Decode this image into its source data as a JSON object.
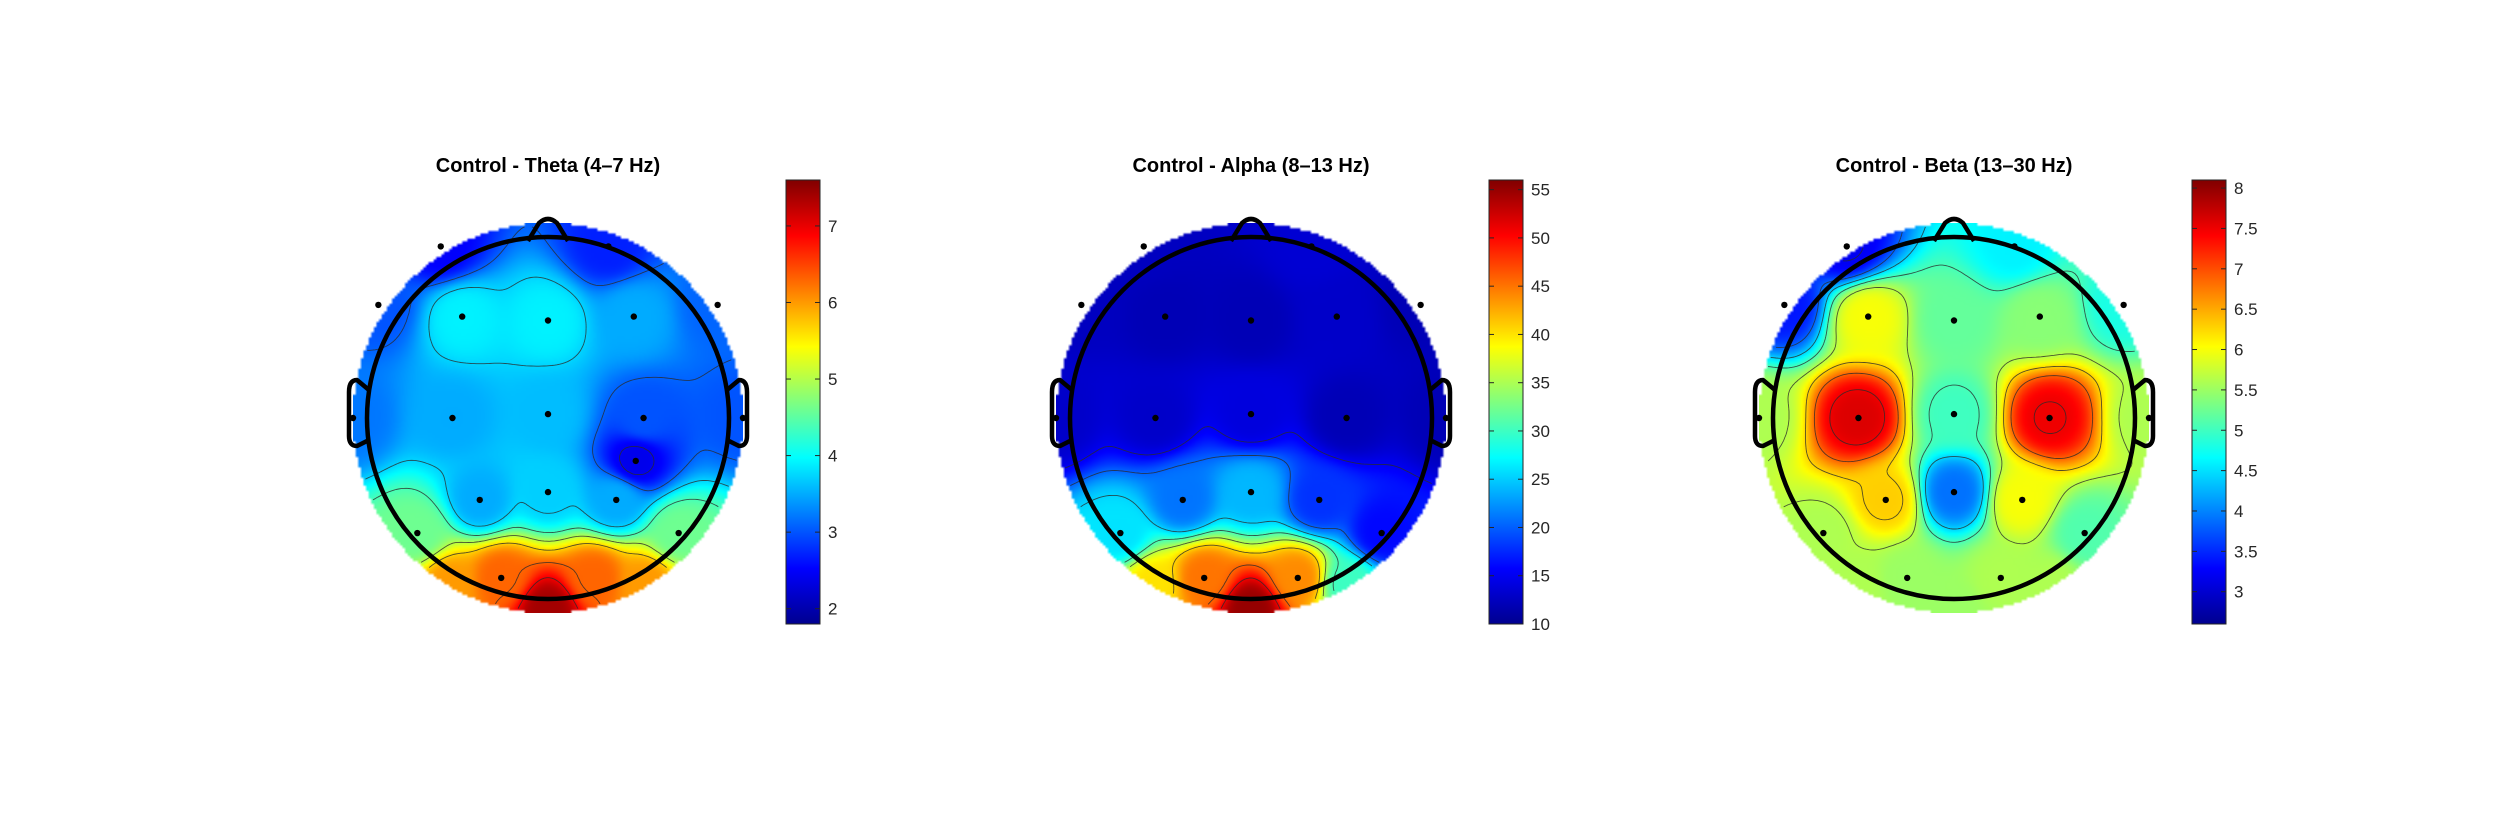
{
  "figure": {
    "colormap": "jet",
    "colormap_stops": [
      "#00008f",
      "#0000ff",
      "#00ffff",
      "#ffff00",
      "#ff0000",
      "#800000"
    ]
  },
  "chart_data": [
    {
      "type": "heatmap",
      "subtype": "eeg-topoplot",
      "title": "Control - Theta (4–7 Hz)",
      "clim": [
        1.8,
        7.6
      ],
      "colorbar_ticks": [
        "2",
        "3",
        "4",
        "5",
        "6",
        "7"
      ],
      "colorbar_tick_values": [
        2,
        3,
        4,
        5,
        6,
        7
      ],
      "background_level": 3.3,
      "electrodes": [
        {
          "x": -0.55,
          "y": 0.88,
          "v": 2.5
        },
        {
          "x": 0.31,
          "y": 0.88,
          "v": 2.7
        },
        {
          "x": -0.87,
          "y": 0.58,
          "v": 3.0
        },
        {
          "x": -0.44,
          "y": 0.52,
          "v": 3.9
        },
        {
          "x": 0.0,
          "y": 0.5,
          "v": 3.9
        },
        {
          "x": 0.44,
          "y": 0.52,
          "v": 3.5
        },
        {
          "x": 0.87,
          "y": 0.58,
          "v": 3.1
        },
        {
          "x": -1.0,
          "y": 0.0,
          "v": 3.2
        },
        {
          "x": -0.49,
          "y": 0.0,
          "v": 3.5
        },
        {
          "x": 0.0,
          "y": 0.02,
          "v": 3.6
        },
        {
          "x": 0.49,
          "y": 0.0,
          "v": 3.0
        },
        {
          "x": 1.0,
          "y": 0.0,
          "v": 3.0
        },
        {
          "x": 0.45,
          "y": -0.22,
          "v": 2.4
        },
        {
          "x": -0.35,
          "y": -0.42,
          "v": 3.5
        },
        {
          "x": 0.0,
          "y": -0.38,
          "v": 3.7
        },
        {
          "x": 0.35,
          "y": -0.42,
          "v": 3.5
        },
        {
          "x": -0.67,
          "y": -0.59,
          "v": 4.6
        },
        {
          "x": 0.67,
          "y": -0.59,
          "v": 4.6
        },
        {
          "x": -0.24,
          "y": -0.82,
          "v": 6.3
        },
        {
          "x": 0.24,
          "y": -0.82,
          "v": 6.3
        },
        {
          "x": 0.0,
          "y": -0.98,
          "v": 7.4
        },
        {
          "x": -0.5,
          "y": -0.85,
          "v": 6.0
        },
        {
          "x": 0.5,
          "y": -0.85,
          "v": 6.0
        }
      ],
      "visible_electrodes": 19
    },
    {
      "type": "heatmap",
      "subtype": "eeg-topoplot",
      "title": "Control - Alpha (8–13 Hz)",
      "clim": [
        10,
        56
      ],
      "colorbar_ticks": [
        "10",
        "15",
        "20",
        "25",
        "30",
        "35",
        "40",
        "45",
        "50",
        "55"
      ],
      "colorbar_tick_values": [
        10,
        15,
        20,
        25,
        30,
        35,
        40,
        45,
        50,
        55
      ],
      "background_level": 12.5,
      "electrodes": [
        {
          "x": -0.55,
          "y": 0.88,
          "v": 12.5
        },
        {
          "x": 0.31,
          "y": 0.88,
          "v": 13.5
        },
        {
          "x": -0.87,
          "y": 0.58,
          "v": 12.5
        },
        {
          "x": -0.44,
          "y": 0.52,
          "v": 12.0
        },
        {
          "x": 0.0,
          "y": 0.5,
          "v": 12.0
        },
        {
          "x": 0.44,
          "y": 0.52,
          "v": 13.0
        },
        {
          "x": 0.87,
          "y": 0.58,
          "v": 12.0
        },
        {
          "x": -1.0,
          "y": 0.0,
          "v": 13.0
        },
        {
          "x": -0.49,
          "y": 0.0,
          "v": 13.0
        },
        {
          "x": 0.0,
          "y": 0.02,
          "v": 14.0
        },
        {
          "x": 0.49,
          "y": 0.0,
          "v": 12.0
        },
        {
          "x": 1.0,
          "y": 0.0,
          "v": 12.0
        },
        {
          "x": -0.35,
          "y": -0.42,
          "v": 21.0
        },
        {
          "x": 0.0,
          "y": -0.38,
          "v": 24.0
        },
        {
          "x": 0.35,
          "y": -0.42,
          "v": 18.0
        },
        {
          "x": -0.67,
          "y": -0.59,
          "v": 26.0
        },
        {
          "x": 0.67,
          "y": -0.59,
          "v": 16.0
        },
        {
          "x": -0.24,
          "y": -0.82,
          "v": 45.0
        },
        {
          "x": 0.24,
          "y": -0.82,
          "v": 44.0
        },
        {
          "x": 0.0,
          "y": -0.98,
          "v": 55.0
        },
        {
          "x": -0.5,
          "y": -0.85,
          "v": 40.0
        },
        {
          "x": 0.5,
          "y": -0.85,
          "v": 30.0
        }
      ],
      "visible_electrodes": 19
    },
    {
      "type": "heatmap",
      "subtype": "eeg-topoplot",
      "title": "Control - Beta (13–30 Hz)",
      "clim": [
        2.6,
        8.1
      ],
      "colorbar_ticks": [
        "3",
        "3.5",
        "4",
        "4.5",
        "5",
        "5.5",
        "6",
        "6.5",
        "7",
        "7.5",
        "8"
      ],
      "colorbar_tick_values": [
        3,
        3.5,
        4,
        4.5,
        5,
        5.5,
        6,
        6.5,
        7,
        7.5,
        8
      ],
      "background_level": 5.6,
      "electrodes": [
        {
          "x": -0.55,
          "y": 0.88,
          "v": 3.2
        },
        {
          "x": 0.31,
          "y": 0.88,
          "v": 4.6
        },
        {
          "x": -0.87,
          "y": 0.58,
          "v": 3.4
        },
        {
          "x": -0.44,
          "y": 0.52,
          "v": 6.0
        },
        {
          "x": 0.0,
          "y": 0.5,
          "v": 5.2
        },
        {
          "x": 0.44,
          "y": 0.52,
          "v": 5.4
        },
        {
          "x": 0.87,
          "y": 0.58,
          "v": 4.8
        },
        {
          "x": -1.0,
          "y": 0.0,
          "v": 5.6
        },
        {
          "x": -0.49,
          "y": 0.0,
          "v": 7.6
        },
        {
          "x": 0.0,
          "y": 0.02,
          "v": 5.0
        },
        {
          "x": 0.49,
          "y": 0.0,
          "v": 7.5
        },
        {
          "x": 1.0,
          "y": 0.0,
          "v": 5.6
        },
        {
          "x": -0.35,
          "y": -0.42,
          "v": 6.3
        },
        {
          "x": 0.0,
          "y": -0.38,
          "v": 3.9
        },
        {
          "x": 0.35,
          "y": -0.42,
          "v": 6.0
        },
        {
          "x": -0.67,
          "y": -0.59,
          "v": 5.6
        },
        {
          "x": 0.67,
          "y": -0.59,
          "v": 5.1
        },
        {
          "x": -0.24,
          "y": -0.82,
          "v": 5.5
        },
        {
          "x": 0.24,
          "y": -0.82,
          "v": 5.6
        },
        {
          "x": 0.0,
          "y": -0.98,
          "v": 5.5
        },
        {
          "x": -0.5,
          "y": -0.85,
          "v": 5.6
        },
        {
          "x": 0.5,
          "y": -0.85,
          "v": 5.6
        }
      ],
      "visible_electrodes": 19
    }
  ]
}
